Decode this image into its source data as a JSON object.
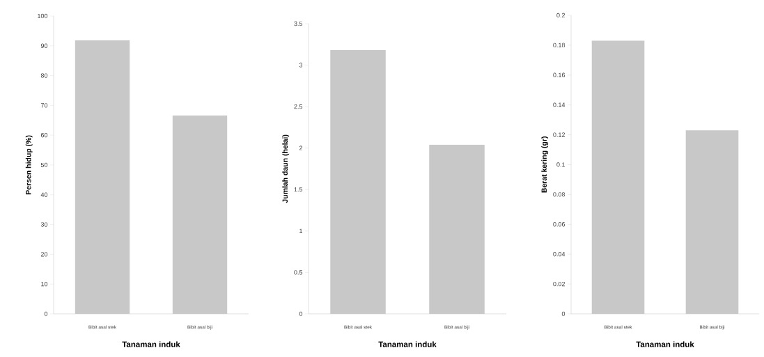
{
  "chart_data": [
    {
      "type": "bar",
      "categories": [
        "Bibit asal stek",
        "Bibit asal biji"
      ],
      "values": [
        91.8,
        66.6
      ],
      "color": "#c8c8c8",
      "ylim": [
        0,
        100
      ],
      "yticks": [
        0,
        10,
        20,
        30,
        40,
        50,
        60,
        70,
        80,
        90,
        100
      ],
      "xlabel": "Tanaman  induk",
      "ylabel": "Persen hidup (%)"
    },
    {
      "type": "bar",
      "categories": [
        "Bibit asal stek",
        "Bibit asal biji"
      ],
      "values": [
        3.18,
        2.04
      ],
      "color": "#c8c8c8",
      "ylim": [
        0,
        3.5
      ],
      "yticks": [
        0,
        0.5,
        1,
        1.5,
        2,
        2.5,
        3,
        3.5
      ],
      "xlabel": "Tanaman  induk",
      "ylabel": "Jumlah daun (helai)"
    },
    {
      "type": "bar",
      "categories": [
        "Bibit asal stek",
        "Bibit asal biji"
      ],
      "values": [
        0.183,
        0.123
      ],
      "color": "#c8c8c8",
      "ylim": [
        0,
        0.2
      ],
      "yticks": [
        0,
        0.02,
        0.04,
        0.06,
        0.08,
        0.1,
        0.12,
        0.14,
        0.16,
        0.18,
        0.2
      ],
      "xlabel": "Tanaman  induk",
      "ylabel": "Berat kering (gr)"
    }
  ]
}
